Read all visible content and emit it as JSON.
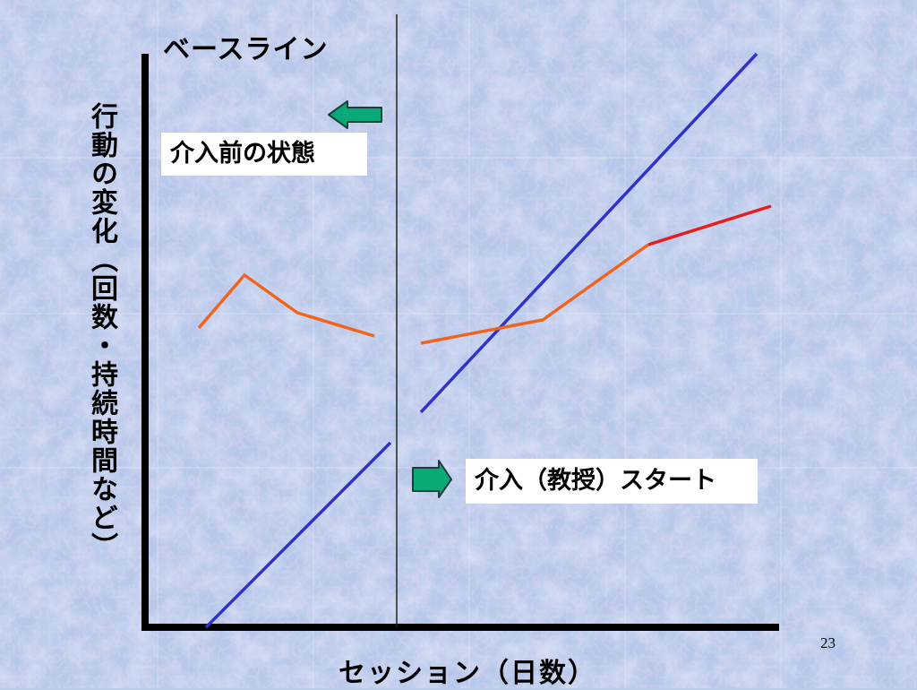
{
  "slide": {
    "title": "ベースライン",
    "ylabel": "行動の変化（回数・持続時間など）",
    "xlabel": "セッション（日数）",
    "page_number": "23",
    "labels": {
      "before": "介入前の状態",
      "start": "介入（教授）スタート"
    }
  },
  "colors": {
    "background": "#b9c9e8",
    "axis": "#000000",
    "phase_line": "#222222",
    "blue_line": "#3232c8",
    "orange_line": "#f0641e",
    "red_line": "#e61e1e",
    "arrow_fill": "#0aaa78",
    "arrow_stroke": "#1e3c3c"
  },
  "icons": [
    "arrow-left-icon",
    "arrow-right-icon"
  ]
}
